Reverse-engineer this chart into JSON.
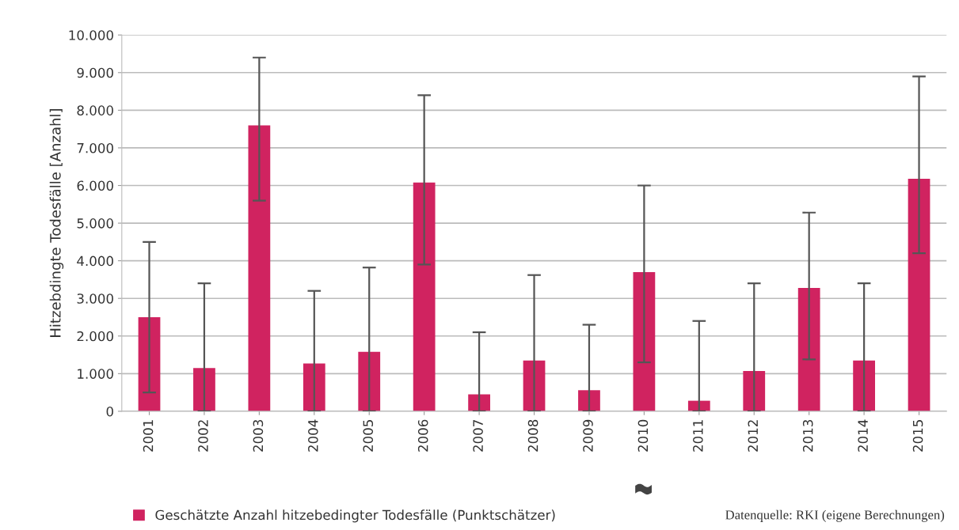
{
  "chart_data": {
    "type": "bar",
    "ylabel": "Hitzebdingte Todesfälle [Anzahl]",
    "categories": [
      "2001",
      "2002",
      "2003",
      "2004",
      "2005",
      "2006",
      "2007",
      "2008",
      "2009",
      "2010",
      "2011",
      "2012",
      "2013",
      "2014",
      "2015"
    ],
    "series": [
      {
        "name": "Geschätzte Anzahl hitzebedingter Todesfälle (Punktschätzer)",
        "color": "#d02360",
        "values": [
          2500,
          1150,
          7600,
          1270,
          1580,
          6080,
          450,
          1350,
          560,
          3700,
          280,
          1070,
          3280,
          1350,
          6180
        ],
        "errors": [
          [
            500,
            4500
          ],
          [
            0,
            3400
          ],
          [
            5600,
            9400
          ],
          [
            0,
            3200
          ],
          [
            0,
            3820
          ],
          [
            3900,
            8400
          ],
          [
            0,
            2100
          ],
          [
            0,
            3620
          ],
          [
            0,
            2300
          ],
          [
            1300,
            6000
          ],
          [
            0,
            2400
          ],
          [
            0,
            3400
          ],
          [
            1380,
            5280
          ],
          [
            0,
            3400
          ],
          [
            4200,
            8900
          ]
        ]
      }
    ],
    "ylim": [
      0,
      10000
    ],
    "yticks": [
      {
        "value": 0,
        "label": "0"
      },
      {
        "value": 1000,
        "label": "1.000"
      },
      {
        "value": 2000,
        "label": "2.000"
      },
      {
        "value": 3000,
        "label": "3.000"
      },
      {
        "value": 4000,
        "label": "4.000"
      },
      {
        "value": 5000,
        "label": "5.000"
      },
      {
        "value": 6000,
        "label": "6.000"
      },
      {
        "value": 7000,
        "label": "7.000"
      },
      {
        "value": 8000,
        "label": "8.000"
      },
      {
        "value": 9000,
        "label": "9.000"
      },
      {
        "value": 10000,
        "label": "10.000"
      }
    ],
    "grid": "y",
    "legend": "bottom left",
    "annotations": [
      "Datenquelle: RKI (eigene Berechnungen)"
    ]
  }
}
